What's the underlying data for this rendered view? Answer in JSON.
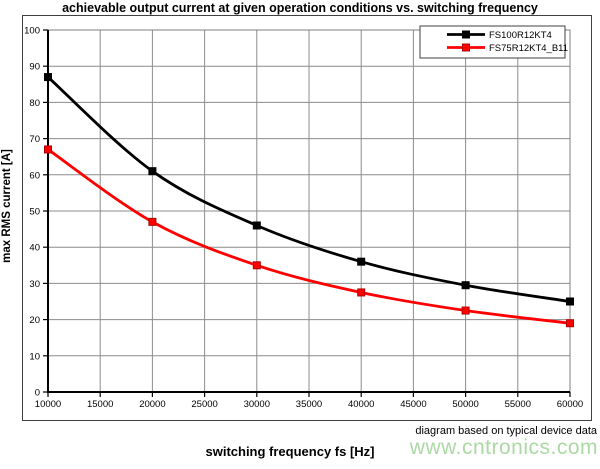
{
  "chart_data": {
    "type": "line",
    "title": "achievable output current at given operation conditions vs. switching frequency",
    "xlabel": "switching frequency fs [Hz]",
    "ylabel": "max RMS current [A]",
    "xlim": [
      10000,
      60000
    ],
    "ylim": [
      0,
      100
    ],
    "xticks": [
      10000,
      15000,
      20000,
      25000,
      30000,
      35000,
      40000,
      45000,
      50000,
      55000,
      60000
    ],
    "yticks": [
      0,
      10,
      20,
      30,
      40,
      50,
      60,
      70,
      80,
      90,
      100
    ],
    "grid": true,
    "legend_position": "top-right",
    "x": [
      10000,
      20000,
      30000,
      40000,
      50000,
      60000
    ],
    "series": [
      {
        "name": "FS100R12KT4",
        "color": "#000000",
        "marker_edge": "#000000",
        "values": [
          87,
          61,
          46,
          36,
          29.5,
          25
        ]
      },
      {
        "name": "FS75R12KT4_B11",
        "color": "#ff0000",
        "marker_edge": "#b00000",
        "values": [
          67,
          47,
          35,
          27.5,
          22.5,
          19
        ]
      }
    ],
    "grid_color": "#8c8c8c",
    "plot_border_color": "#7f7f7f",
    "axis_color": "#000000"
  },
  "footer": {
    "note": "diagram based on typical device data",
    "watermark": "www.cntronics.com",
    "watermark_color": "#abd9a4"
  }
}
